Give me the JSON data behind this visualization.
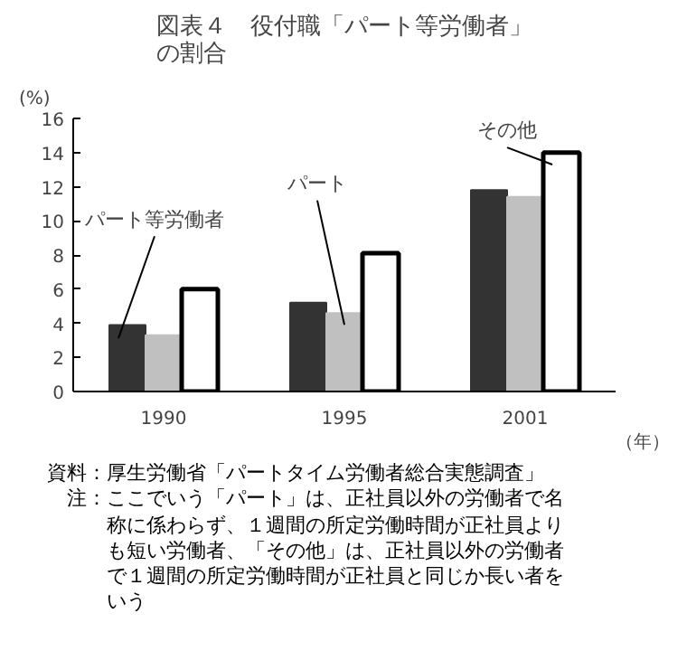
{
  "chart_data": {
    "type": "bar",
    "title": "図表４　役付職「パート等労働者」の割合",
    "ylabel": "(%)",
    "xlabel": "（年）",
    "categories": [
      "1990",
      "1995",
      "2001"
    ],
    "series": [
      {
        "name": "パート等労働者",
        "color": "#333333",
        "values": [
          3.9,
          5.2,
          11.8
        ]
      },
      {
        "name": "パート",
        "color": "#c0c0c0",
        "values": [
          3.3,
          4.6,
          11.4
        ]
      },
      {
        "name": "その他",
        "color": "#ffffff",
        "values": [
          6.0,
          8.1,
          14.0
        ]
      }
    ],
    "ylim": [
      0,
      16
    ],
    "yticks": [
      0,
      2,
      4,
      6,
      8,
      10,
      12,
      14,
      16
    ],
    "grid": false,
    "annotations": [
      "資料：厚生労働省「パートタイム労働者総合実態調査」",
      "注：ここでいう「パート」は、正社員以外の労働者で名称に係わらず、１週間の所定労働時間が正社員よりも短い労働者、「その他」は、正社員以外の労働者で１週間の所定労働時間が正社員と同じか長い者をいう"
    ]
  }
}
